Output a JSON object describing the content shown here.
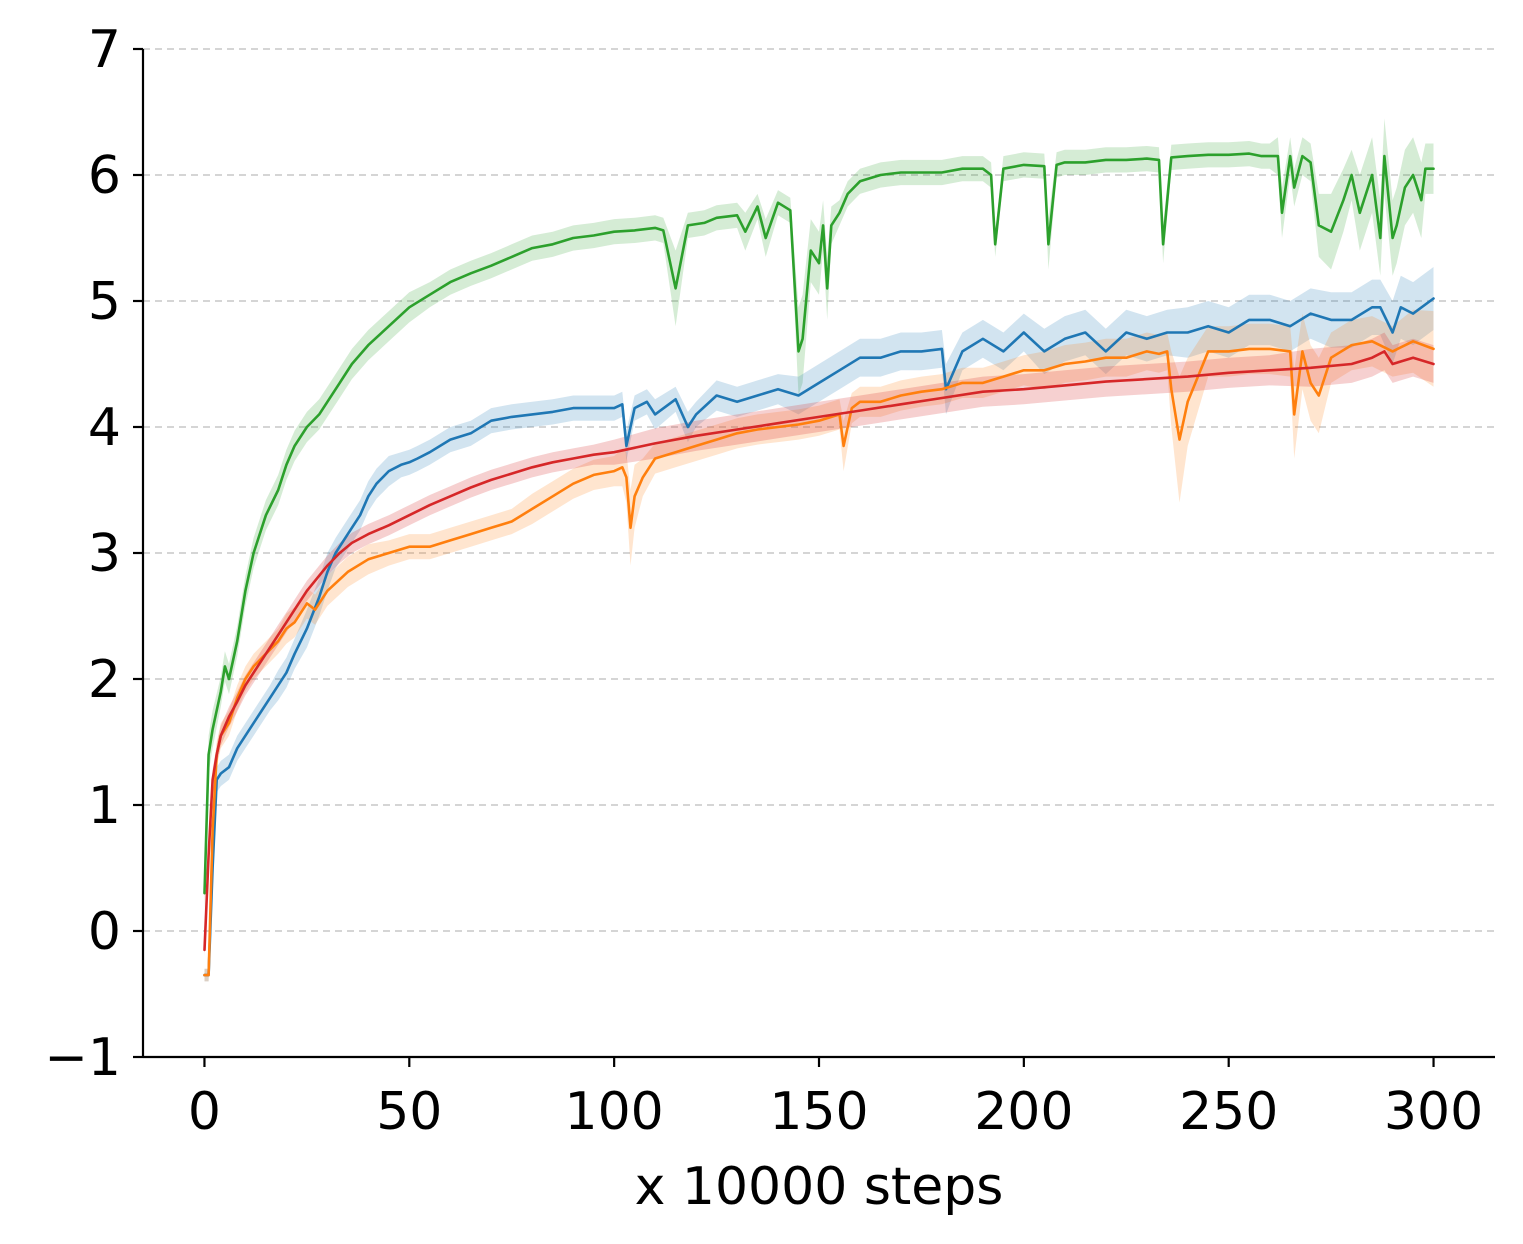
{
  "chart_data": {
    "type": "line",
    "title": "",
    "xlabel": "x 10000 steps",
    "ylabel": "",
    "xlim": [
      -15,
      315
    ],
    "ylim": [
      -1,
      7
    ],
    "xticks": [
      0,
      50,
      100,
      150,
      200,
      250,
      300
    ],
    "xtick_labels": [
      "0",
      "50",
      "100",
      "150",
      "200",
      "250",
      "300"
    ],
    "yticks": [
      -1,
      0,
      1,
      2,
      3,
      4,
      5,
      6,
      7
    ],
    "ytick_labels": [
      "−1",
      "0",
      "1",
      "2",
      "3",
      "4",
      "5",
      "6",
      "7"
    ],
    "grid": "horizontal dashed",
    "legend": "none",
    "series": [
      {
        "color": "#2ca02c",
        "band_opacity": 0.2,
        "x": [
          0,
          1,
          2,
          4,
          5,
          6,
          8,
          10,
          12,
          15,
          18,
          20,
          22,
          25,
          28,
          30,
          33,
          36,
          40,
          45,
          50,
          55,
          60,
          65,
          70,
          75,
          80,
          85,
          90,
          95,
          100,
          105,
          110,
          112,
          115,
          118,
          122,
          125,
          130,
          132,
          135,
          137,
          140,
          143,
          145,
          146,
          148,
          150,
          151,
          152,
          153,
          155,
          157,
          160,
          165,
          170,
          175,
          180,
          185,
          190,
          192,
          193,
          195,
          200,
          205,
          206,
          208,
          210,
          215,
          220,
          225,
          230,
          233,
          234,
          236,
          240,
          245,
          250,
          255,
          258,
          260,
          262,
          263,
          265,
          266,
          268,
          270,
          272,
          275,
          278,
          280,
          282,
          285,
          287,
          288,
          290,
          291,
          293,
          295,
          297,
          298,
          300
        ],
        "y": [
          0.3,
          1.4,
          1.6,
          1.9,
          2.1,
          2.0,
          2.3,
          2.7,
          3.0,
          3.3,
          3.5,
          3.7,
          3.85,
          4.0,
          4.1,
          4.2,
          4.35,
          4.5,
          4.65,
          4.8,
          4.95,
          5.05,
          5.15,
          5.22,
          5.28,
          5.35,
          5.42,
          5.45,
          5.5,
          5.52,
          5.55,
          5.56,
          5.58,
          5.56,
          5.1,
          5.6,
          5.62,
          5.66,
          5.68,
          5.55,
          5.75,
          5.5,
          5.78,
          5.72,
          4.6,
          4.7,
          5.4,
          5.3,
          5.6,
          5.1,
          5.6,
          5.7,
          5.85,
          5.95,
          6.0,
          6.02,
          6.02,
          6.02,
          6.05,
          6.05,
          6.0,
          5.45,
          6.05,
          6.08,
          6.07,
          5.45,
          6.08,
          6.1,
          6.1,
          6.12,
          6.12,
          6.13,
          6.12,
          5.45,
          6.14,
          6.15,
          6.16,
          6.16,
          6.17,
          6.15,
          6.15,
          6.15,
          5.7,
          6.15,
          5.9,
          6.15,
          6.1,
          5.6,
          5.55,
          5.8,
          6.0,
          5.7,
          6.0,
          5.5,
          6.15,
          5.5,
          5.6,
          5.9,
          6.0,
          5.8,
          6.05,
          6.05
        ],
        "band": [
          0.15,
          0.15,
          0.15,
          0.12,
          0.12,
          0.12,
          0.12,
          0.12,
          0.12,
          0.12,
          0.12,
          0.12,
          0.12,
          0.12,
          0.12,
          0.12,
          0.12,
          0.12,
          0.12,
          0.12,
          0.12,
          0.1,
          0.1,
          0.1,
          0.1,
          0.1,
          0.1,
          0.1,
          0.1,
          0.1,
          0.1,
          0.1,
          0.1,
          0.1,
          0.3,
          0.1,
          0.1,
          0.1,
          0.1,
          0.15,
          0.1,
          0.15,
          0.1,
          0.1,
          0.35,
          0.35,
          0.25,
          0.25,
          0.2,
          0.25,
          0.15,
          0.1,
          0.1,
          0.1,
          0.1,
          0.1,
          0.1,
          0.1,
          0.1,
          0.1,
          0.1,
          0.1,
          0.1,
          0.1,
          0.1,
          0.2,
          0.1,
          0.1,
          0.1,
          0.1,
          0.1,
          0.1,
          0.1,
          0.15,
          0.1,
          0.1,
          0.1,
          0.1,
          0.1,
          0.1,
          0.1,
          0.15,
          0.2,
          0.15,
          0.15,
          0.15,
          0.15,
          0.25,
          0.3,
          0.25,
          0.2,
          0.3,
          0.3,
          0.3,
          0.3,
          0.3,
          0.3,
          0.3,
          0.3,
          0.3,
          0.2,
          0.2
        ]
      },
      {
        "color": "#1f77b4",
        "band_opacity": 0.2,
        "x": [
          0,
          1,
          2,
          3,
          4,
          6,
          8,
          10,
          12,
          14,
          16,
          18,
          20,
          22,
          25,
          28,
          30,
          32,
          35,
          38,
          40,
          42,
          45,
          48,
          50,
          52,
          55,
          60,
          65,
          70,
          75,
          80,
          85,
          90,
          95,
          100,
          102,
          103,
          105,
          108,
          110,
          115,
          118,
          120,
          125,
          130,
          135,
          140,
          145,
          150,
          155,
          160,
          165,
          170,
          175,
          180,
          181,
          185,
          190,
          195,
          200,
          205,
          210,
          215,
          220,
          225,
          230,
          235,
          240,
          245,
          250,
          255,
          260,
          265,
          270,
          275,
          280,
          285,
          287,
          290,
          292,
          295,
          300
        ],
        "y": [
          -0.35,
          -0.35,
          0.5,
          1.2,
          1.25,
          1.3,
          1.45,
          1.55,
          1.65,
          1.75,
          1.85,
          1.95,
          2.05,
          2.2,
          2.4,
          2.65,
          2.85,
          3.0,
          3.15,
          3.3,
          3.45,
          3.55,
          3.65,
          3.7,
          3.72,
          3.75,
          3.8,
          3.9,
          3.95,
          4.05,
          4.08,
          4.1,
          4.12,
          4.15,
          4.15,
          4.15,
          4.18,
          3.85,
          4.15,
          4.2,
          4.1,
          4.22,
          4.0,
          4.1,
          4.25,
          4.2,
          4.25,
          4.3,
          4.25,
          4.35,
          4.45,
          4.55,
          4.55,
          4.6,
          4.6,
          4.62,
          4.3,
          4.6,
          4.7,
          4.6,
          4.75,
          4.6,
          4.7,
          4.75,
          4.6,
          4.75,
          4.7,
          4.75,
          4.75,
          4.8,
          4.75,
          4.85,
          4.85,
          4.8,
          4.9,
          4.85,
          4.85,
          4.95,
          4.95,
          4.75,
          4.95,
          4.9,
          5.02
        ],
        "band": [
          0.05,
          0.05,
          0.1,
          0.1,
          0.1,
          0.1,
          0.1,
          0.1,
          0.1,
          0.1,
          0.1,
          0.12,
          0.12,
          0.12,
          0.15,
          0.15,
          0.15,
          0.12,
          0.12,
          0.12,
          0.12,
          0.12,
          0.12,
          0.1,
          0.1,
          0.1,
          0.1,
          0.1,
          0.1,
          0.1,
          0.1,
          0.1,
          0.1,
          0.1,
          0.1,
          0.1,
          0.1,
          0.12,
          0.1,
          0.1,
          0.12,
          0.1,
          0.12,
          0.1,
          0.12,
          0.12,
          0.12,
          0.12,
          0.15,
          0.15,
          0.15,
          0.15,
          0.15,
          0.15,
          0.15,
          0.15,
          0.2,
          0.15,
          0.15,
          0.15,
          0.15,
          0.18,
          0.18,
          0.18,
          0.18,
          0.18,
          0.18,
          0.18,
          0.2,
          0.2,
          0.2,
          0.2,
          0.2,
          0.2,
          0.2,
          0.22,
          0.22,
          0.22,
          0.22,
          0.25,
          0.25,
          0.25,
          0.25
        ]
      },
      {
        "color": "#ff7f0e",
        "band_opacity": 0.2,
        "x": [
          0,
          1,
          2,
          3,
          4,
          6,
          8,
          10,
          12,
          15,
          18,
          20,
          22,
          25,
          27,
          30,
          35,
          40,
          45,
          50,
          55,
          60,
          65,
          70,
          75,
          80,
          85,
          90,
          95,
          100,
          102,
          103,
          104,
          105,
          107,
          110,
          115,
          120,
          125,
          130,
          135,
          140,
          145,
          150,
          155,
          156,
          158,
          160,
          165,
          170,
          175,
          180,
          185,
          190,
          195,
          200,
          205,
          210,
          215,
          220,
          225,
          230,
          233,
          235,
          236,
          238,
          240,
          245,
          250,
          255,
          260,
          265,
          266,
          268,
          270,
          272,
          275,
          280,
          285,
          290,
          295,
          300
        ],
        "y": [
          -0.35,
          -0.35,
          0.8,
          1.4,
          1.55,
          1.65,
          1.85,
          2.0,
          2.1,
          2.2,
          2.3,
          2.4,
          2.45,
          2.6,
          2.55,
          2.7,
          2.85,
          2.95,
          3.0,
          3.05,
          3.05,
          3.1,
          3.15,
          3.2,
          3.25,
          3.35,
          3.45,
          3.55,
          3.62,
          3.65,
          3.68,
          3.6,
          3.2,
          3.45,
          3.6,
          3.75,
          3.8,
          3.85,
          3.9,
          3.95,
          3.98,
          4.0,
          4.02,
          4.05,
          4.1,
          3.85,
          4.15,
          4.2,
          4.2,
          4.25,
          4.28,
          4.3,
          4.35,
          4.35,
          4.4,
          4.45,
          4.45,
          4.5,
          4.52,
          4.55,
          4.55,
          4.6,
          4.58,
          4.6,
          4.3,
          3.9,
          4.2,
          4.6,
          4.6,
          4.62,
          4.62,
          4.6,
          4.1,
          4.6,
          4.35,
          4.25,
          4.55,
          4.65,
          4.68,
          4.6,
          4.68,
          4.62
        ],
        "band": [
          0.05,
          0.05,
          0.1,
          0.1,
          0.1,
          0.1,
          0.1,
          0.1,
          0.1,
          0.1,
          0.1,
          0.12,
          0.12,
          0.12,
          0.12,
          0.12,
          0.12,
          0.12,
          0.1,
          0.1,
          0.1,
          0.1,
          0.1,
          0.1,
          0.1,
          0.12,
          0.12,
          0.12,
          0.12,
          0.12,
          0.15,
          0.2,
          0.3,
          0.25,
          0.15,
          0.12,
          0.12,
          0.12,
          0.12,
          0.12,
          0.12,
          0.12,
          0.12,
          0.12,
          0.12,
          0.2,
          0.12,
          0.12,
          0.12,
          0.12,
          0.12,
          0.12,
          0.12,
          0.12,
          0.12,
          0.12,
          0.15,
          0.15,
          0.15,
          0.15,
          0.15,
          0.15,
          0.15,
          0.15,
          0.3,
          0.5,
          0.35,
          0.2,
          0.2,
          0.2,
          0.2,
          0.2,
          0.35,
          0.3,
          0.3,
          0.3,
          0.2,
          0.2,
          0.2,
          0.2,
          0.25,
          0.3
        ]
      },
      {
        "color": "#d62728",
        "band_opacity": 0.22,
        "x": [
          0,
          1,
          2,
          3,
          4,
          6,
          8,
          10,
          12,
          15,
          18,
          20,
          22,
          25,
          28,
          30,
          33,
          36,
          40,
          45,
          50,
          55,
          60,
          65,
          70,
          75,
          80,
          85,
          90,
          95,
          100,
          110,
          120,
          130,
          140,
          150,
          160,
          170,
          180,
          190,
          200,
          210,
          220,
          230,
          240,
          250,
          260,
          270,
          280,
          285,
          288,
          290,
          295,
          300
        ],
        "y": [
          -0.15,
          0.6,
          1.2,
          1.4,
          1.55,
          1.7,
          1.82,
          1.95,
          2.05,
          2.2,
          2.35,
          2.45,
          2.55,
          2.7,
          2.82,
          2.9,
          3.0,
          3.08,
          3.15,
          3.22,
          3.3,
          3.38,
          3.45,
          3.52,
          3.58,
          3.63,
          3.68,
          3.72,
          3.75,
          3.78,
          3.8,
          3.87,
          3.93,
          3.98,
          4.03,
          4.08,
          4.13,
          4.18,
          4.23,
          4.28,
          4.3,
          4.33,
          4.36,
          4.38,
          4.4,
          4.43,
          4.45,
          4.47,
          4.5,
          4.55,
          4.6,
          4.5,
          4.55,
          4.5
        ],
        "band": [
          0.05,
          0.08,
          0.08,
          0.08,
          0.08,
          0.08,
          0.08,
          0.08,
          0.08,
          0.08,
          0.08,
          0.08,
          0.08,
          0.08,
          0.08,
          0.08,
          0.08,
          0.08,
          0.08,
          0.08,
          0.08,
          0.08,
          0.08,
          0.08,
          0.08,
          0.08,
          0.08,
          0.08,
          0.08,
          0.08,
          0.1,
          0.12,
          0.12,
          0.12,
          0.12,
          0.12,
          0.12,
          0.12,
          0.12,
          0.12,
          0.12,
          0.12,
          0.12,
          0.12,
          0.12,
          0.12,
          0.12,
          0.15,
          0.15,
          0.15,
          0.15,
          0.15,
          0.15,
          0.15
        ]
      }
    ]
  }
}
